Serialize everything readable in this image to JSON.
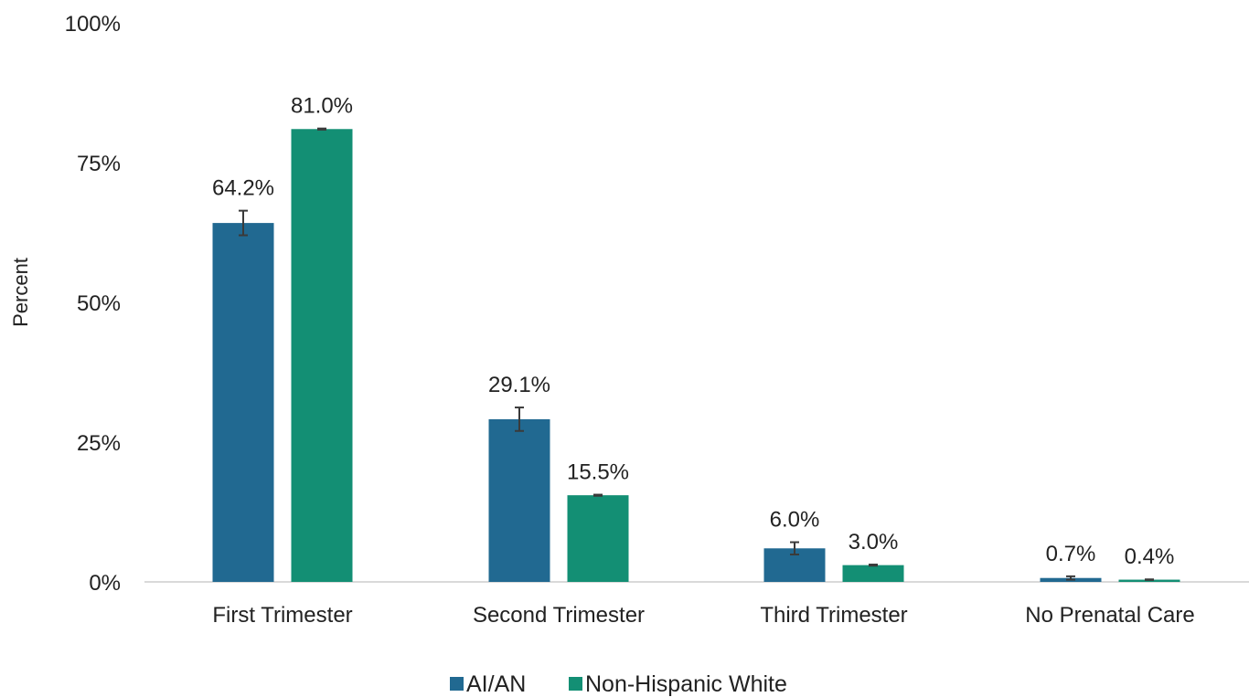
{
  "chart_data": {
    "type": "bar",
    "title": "",
    "xlabel": "",
    "ylabel": "Percent",
    "ylim": [
      0,
      100
    ],
    "yticks": [
      "0%",
      "25%",
      "50%",
      "75%",
      "100%"
    ],
    "ytick_values": [
      0,
      25,
      50,
      75,
      100
    ],
    "categories": [
      "First Trimester",
      "Second Trimester",
      "Third Trimester",
      "No Prenatal Care"
    ],
    "series": [
      {
        "name": "AI/AN",
        "color": "#216991",
        "values": [
          64.2,
          29.1,
          6.0,
          0.7
        ],
        "labels": [
          "64.2%",
          "29.1%",
          "6.0%",
          "0.7%"
        ],
        "error_low": [
          62.0,
          27.0,
          4.9,
          0.4
        ],
        "error_high": [
          66.4,
          31.2,
          7.1,
          1.0
        ]
      },
      {
        "name": "Non-Hispanic White",
        "color": "#138f74",
        "values": [
          81.0,
          15.5,
          3.0,
          0.4
        ],
        "labels": [
          "81.0%",
          "15.5%",
          "3.0%",
          "0.4%"
        ],
        "error_low": [
          80.9,
          15.4,
          2.9,
          0.35
        ],
        "error_high": [
          81.1,
          15.6,
          3.1,
          0.45
        ]
      }
    ],
    "legend_position": "bottom-center",
    "grid": false
  }
}
